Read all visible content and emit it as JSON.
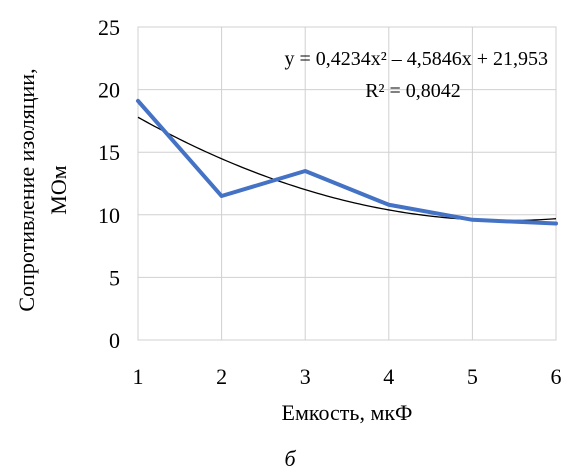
{
  "chart_data": {
    "type": "line",
    "x": [
      1,
      2,
      3,
      4,
      5,
      6
    ],
    "series": [
      {
        "values": [
          19.1,
          11.5,
          13.5,
          10.8,
          9.6,
          9.3
        ],
        "color": "#4472C4"
      }
    ],
    "trendline": {
      "kind": "polynomial-2",
      "coefficients": {
        "a": 0.4234,
        "b": -4.5846,
        "c": 21.953
      },
      "color": "#000000"
    },
    "equation_label": "y = 0,4234x² – 4,5846x + 21,953",
    "r2_label": "R² = 0,8042",
    "xlabel": "Емкость, мкФ",
    "ylabel_line1": "Сопротивление изоляции,",
    "ylabel_line2": "МОм",
    "caption": "б",
    "xlim": [
      1,
      6
    ],
    "ylim": [
      0,
      25
    ],
    "x_ticks": [
      "1",
      "2",
      "3",
      "4",
      "5",
      "6"
    ],
    "y_ticks": [
      "0",
      "5",
      "10",
      "15",
      "20",
      "25"
    ],
    "grid": true
  }
}
